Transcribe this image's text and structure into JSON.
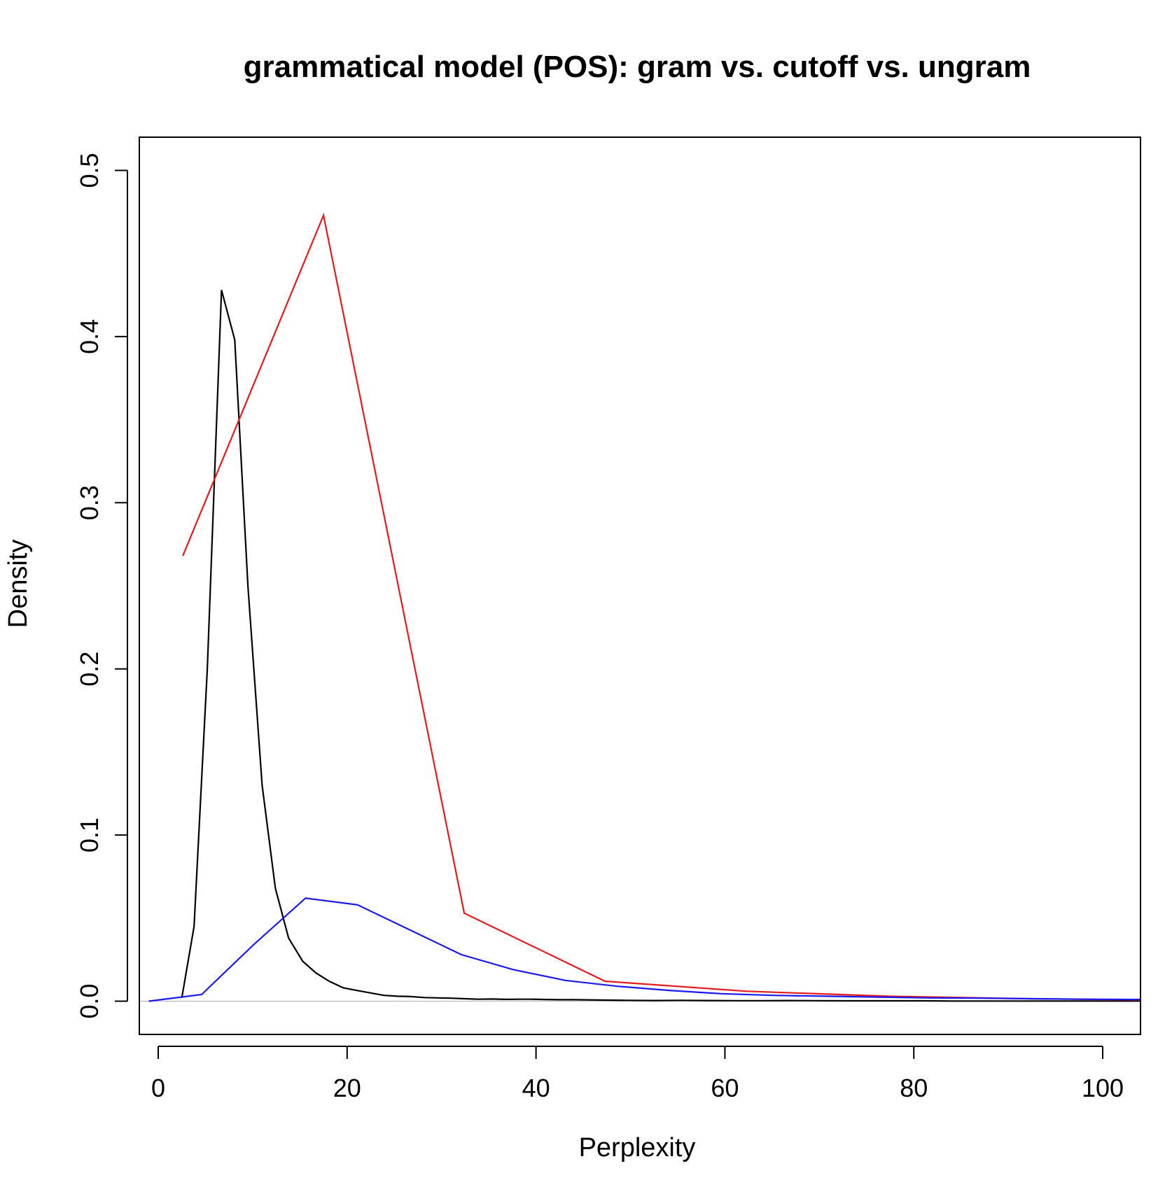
{
  "chart_data": {
    "type": "line",
    "title": "grammatical model (POS): gram vs. cutoff vs. ungram",
    "xlabel": "Perplexity",
    "ylabel": "Density",
    "xlim": [
      -2,
      104
    ],
    "ylim": [
      -0.02,
      0.52
    ],
    "x_ticks": [
      0,
      20,
      40,
      60,
      80,
      100
    ],
    "x_tick_labels": [
      "0",
      "20",
      "40",
      "60",
      "80",
      "100"
    ],
    "y_ticks": [
      0.0,
      0.1,
      0.2,
      0.3,
      0.4,
      0.5
    ],
    "y_tick_labels": [
      "0.0",
      "0.1",
      "0.2",
      "0.3",
      "0.4",
      "0.5"
    ],
    "grid": false,
    "legend": "none",
    "baseline": {
      "y": 0,
      "color": "#bbbbbb"
    },
    "series": [
      {
        "color": "#000000",
        "points": [
          [
            2.5,
            0.002
          ],
          [
            3.8,
            0.045
          ],
          [
            5.2,
            0.2
          ],
          [
            6.7,
            0.428
          ],
          [
            8.1,
            0.398
          ],
          [
            9.5,
            0.25
          ],
          [
            11.0,
            0.13
          ],
          [
            12.4,
            0.068
          ],
          [
            13.8,
            0.038
          ],
          [
            15.3,
            0.024
          ],
          [
            16.7,
            0.017
          ],
          [
            18.1,
            0.012
          ],
          [
            19.6,
            0.008
          ],
          [
            21.0,
            0.0065
          ],
          [
            22.4,
            0.005
          ],
          [
            23.9,
            0.0035
          ],
          [
            25.3,
            0.003
          ],
          [
            26.7,
            0.0028
          ],
          [
            28.2,
            0.0022
          ],
          [
            29.6,
            0.002
          ],
          [
            31.0,
            0.0018
          ],
          [
            32.5,
            0.0015
          ],
          [
            33.9,
            0.0012
          ],
          [
            35.3,
            0.0013
          ],
          [
            36.8,
            0.0011
          ],
          [
            38.2,
            0.0012
          ],
          [
            39.6,
            0.0012
          ],
          [
            41.1,
            0.001
          ],
          [
            42.5,
            0.0009
          ],
          [
            43.9,
            0.0009
          ],
          [
            46.8,
            0.0007
          ],
          [
            49.6,
            0.0005
          ],
          [
            52.5,
            0.0004
          ],
          [
            55.4,
            0.0005
          ],
          [
            58.2,
            0.0004
          ],
          [
            61.1,
            0.0003
          ],
          [
            64.0,
            0.0003
          ],
          [
            66.8,
            0.0004
          ],
          [
            69.7,
            0.0003
          ],
          [
            72.5,
            0.0002
          ],
          [
            75.4,
            0.0002
          ],
          [
            78.3,
            0.0002
          ],
          [
            81.1,
            0.0002
          ],
          [
            84.0,
            0.0001
          ],
          [
            86.8,
            0.0001
          ],
          [
            89.7,
            0.0001
          ],
          [
            92.6,
            0.0001
          ],
          [
            95.4,
            0.0001
          ],
          [
            98.3,
            0.0001
          ],
          [
            101.1,
            0.0001
          ],
          [
            104.0,
            0.0001
          ]
        ]
      },
      {
        "color": "#e41a1c",
        "points": [
          [
            2.6,
            0.268
          ],
          [
            17.5,
            0.473
          ],
          [
            32.4,
            0.053
          ],
          [
            47.3,
            0.012
          ],
          [
            62.3,
            0.006
          ],
          [
            77.2,
            0.003
          ],
          [
            92.1,
            0.0015
          ],
          [
            104.0,
            0.0008
          ]
        ]
      },
      {
        "color": "#1a1aee",
        "points": [
          [
            -1.0,
            0.0
          ],
          [
            4.6,
            0.004
          ],
          [
            10.1,
            0.034
          ],
          [
            15.6,
            0.062
          ],
          [
            21.1,
            0.058
          ],
          [
            26.6,
            0.043
          ],
          [
            32.1,
            0.028
          ],
          [
            37.6,
            0.019
          ],
          [
            43.1,
            0.0125
          ],
          [
            48.6,
            0.009
          ],
          [
            54.1,
            0.0065
          ],
          [
            59.6,
            0.0045
          ],
          [
            65.1,
            0.0035
          ],
          [
            70.6,
            0.003
          ],
          [
            76.1,
            0.0025
          ],
          [
            81.6,
            0.002
          ],
          [
            87.1,
            0.0018
          ],
          [
            92.6,
            0.0015
          ],
          [
            98.1,
            0.0012
          ],
          [
            104.0,
            0.001
          ]
        ]
      }
    ]
  }
}
